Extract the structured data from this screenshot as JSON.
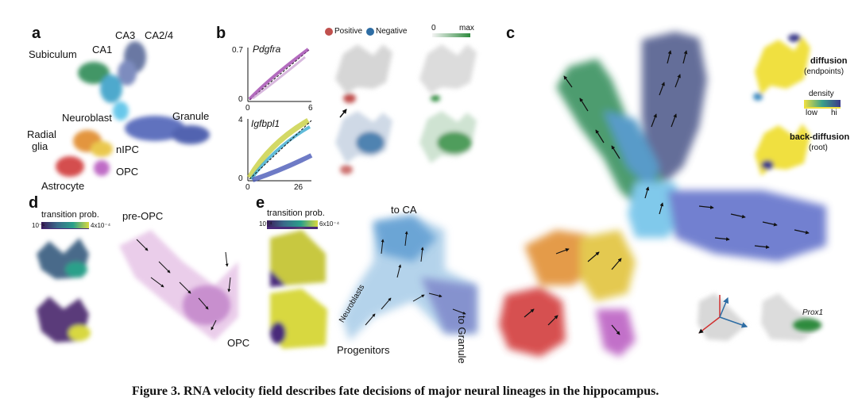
{
  "panels": {
    "a": {
      "label": "a",
      "clusters": [
        "CA3",
        "CA2/4",
        "CA1",
        "Subiculum",
        "Neuroblast",
        "Granule",
        "Radial",
        "glia",
        "nIPC",
        "OPC",
        "Astrocyte"
      ]
    },
    "b": {
      "label": "b",
      "gene1": "Pdgfra",
      "gene2": "Igfbpl1",
      "plot1_ytick": "0.7",
      "plot1_x0": "0",
      "plot1_y0": "0",
      "plot1_xmax": "6",
      "plot2_ytick": "4",
      "plot2_x0": "0",
      "plot2_y0": "0",
      "plot2_xmax": "26",
      "legend_positive": "Positive",
      "legend_negative": "Negative",
      "scale_min": "0",
      "scale_max": "max",
      "colors": {
        "positive": "#c0504d",
        "negative": "#2e6da4",
        "green": "#2e8b3e"
      }
    },
    "c": {
      "label": "c",
      "inset1_title": "diffusion",
      "inset1_sub": "(endpoints)",
      "density_title": "density",
      "density_low": "low",
      "density_high": "hi",
      "inset2_title": "back-diffusion",
      "inset2_sub": "(root)",
      "gene_inset": "Prox1"
    },
    "d": {
      "label": "d",
      "colorbar_title": "transition prob.",
      "colorbar_min": "10⁻⁵",
      "colorbar_max": "4x10⁻⁴",
      "pre_label": "pre-OPC",
      "end_label": "OPC"
    },
    "e": {
      "label": "e",
      "colorbar_title": "transition prob.",
      "colorbar_min": "10⁻⁴",
      "colorbar_max": "6x10⁻⁴",
      "to_ca": "to CA",
      "to_granule": "to Granule",
      "neuroblasts": "Neuroblasts",
      "progenitors": "Progenitors"
    }
  },
  "caption": "Figure 3. RNA velocity field describes fate decisions of major neural lineages in the hippocampus."
}
